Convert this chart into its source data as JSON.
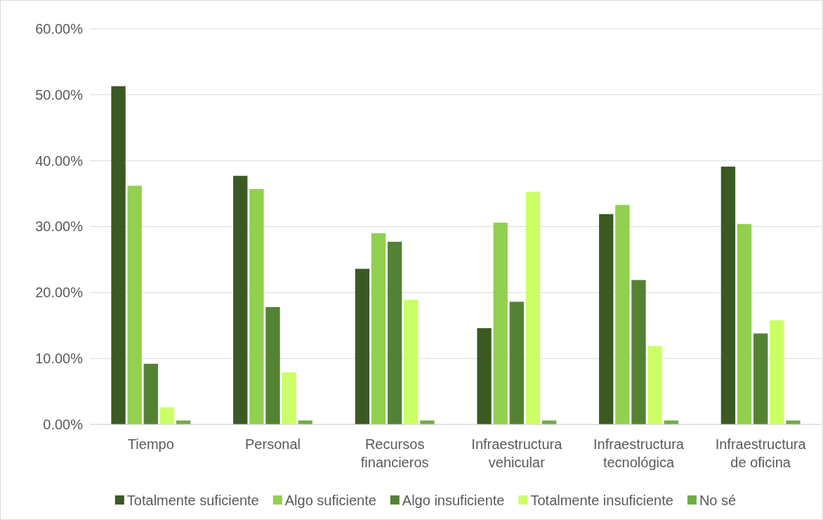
{
  "chart_data": {
    "type": "bar",
    "categories": [
      "Tiempo",
      "Personal",
      "Recursos financieros",
      "Infraestructura vehicular",
      "Infraestructura tecnológica",
      "Infraestructura de oficina"
    ],
    "series": [
      {
        "name": "Totalmente suficiente",
        "color": "#3b5a23",
        "values": [
          51.3,
          37.7,
          23.6,
          14.6,
          31.9,
          39.1
        ]
      },
      {
        "name": "Algo suficiente",
        "color": "#92d050",
        "values": [
          36.2,
          35.7,
          29.0,
          30.6,
          33.3,
          30.4
        ]
      },
      {
        "name": "Algo insuficiente",
        "color": "#548235",
        "values": [
          9.2,
          17.8,
          27.7,
          18.6,
          21.9,
          13.8
        ]
      },
      {
        "name": "Totalmente insuficiente",
        "color": "#ccff66",
        "values": [
          2.6,
          7.9,
          18.9,
          35.3,
          11.9,
          15.8
        ]
      },
      {
        "name": "No sé",
        "color": "#70ad47",
        "values": [
          0.6,
          0.6,
          0.6,
          0.6,
          0.6,
          0.6
        ]
      }
    ],
    "ylim": [
      0,
      60
    ],
    "yticks": [
      {
        "value": 0,
        "label": "0.00%"
      },
      {
        "value": 10,
        "label": "10.00%"
      },
      {
        "value": 20,
        "label": "20.00%"
      },
      {
        "value": 30,
        "label": "30.00%"
      },
      {
        "value": 40,
        "label": "40.00%"
      },
      {
        "value": 50,
        "label": "50.00%"
      },
      {
        "value": 60,
        "label": "60.00%"
      }
    ],
    "grid": "y",
    "legend": "bottom"
  }
}
